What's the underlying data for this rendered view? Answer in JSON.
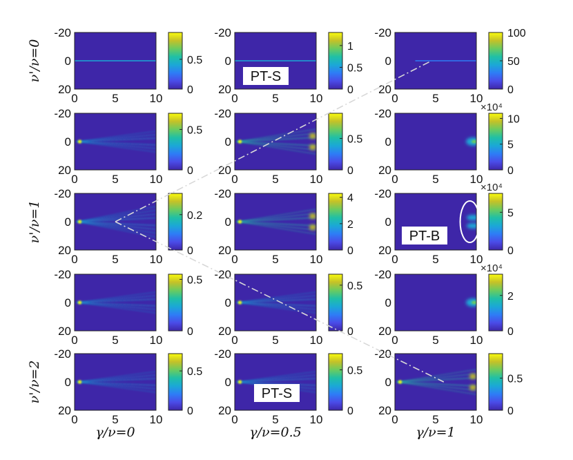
{
  "chart_data": {
    "type": "heatmap",
    "title": "",
    "xlabel": "",
    "ylabel": "",
    "x_range": [
      0,
      10
    ],
    "y_range": [
      -20,
      20
    ],
    "x_ticks": [
      "0",
      "5",
      "10"
    ],
    "y_ticks": [
      "-20",
      "0",
      "20"
    ],
    "column_labels": [
      "γ/ν=0",
      "γ/ν=0.5",
      "γ/ν=1"
    ],
    "row_labels": [
      {
        "row": 0,
        "text": "ν'/ν=0"
      },
      {
        "row": 2,
        "text": "ν'/ν=1"
      },
      {
        "row": 4,
        "text": "ν'/ν=2"
      }
    ],
    "colormap": [
      "#3e26a8",
      "#4a4ce8",
      "#2e7df6",
      "#1ba8d6",
      "#20c0a5",
      "#6bcb5f",
      "#c4c128",
      "#f9fb0e"
    ],
    "panels": [
      {
        "row": 0,
        "col": 0,
        "pattern": "line",
        "cb_max": 0.95,
        "cb_ticks": [
          0,
          0.5
        ],
        "multiplier": ""
      },
      {
        "row": 0,
        "col": 1,
        "pattern": "line",
        "cb_max": 1.3,
        "cb_ticks": [
          0,
          0.5,
          1
        ],
        "multiplier": ""
      },
      {
        "row": 0,
        "col": 2,
        "pattern": "line_right",
        "cb_max": 100,
        "cb_ticks": [
          0,
          50,
          100
        ],
        "multiplier": ""
      },
      {
        "row": 1,
        "col": 0,
        "pattern": "fan",
        "cb_max": 0.7,
        "cb_ticks": [
          0,
          0.5
        ],
        "multiplier": ""
      },
      {
        "row": 1,
        "col": 1,
        "pattern": "fan_bright",
        "cb_max": 0.9,
        "cb_ticks": [
          0,
          0.5
        ],
        "multiplier": ""
      },
      {
        "row": 1,
        "col": 2,
        "pattern": "spot",
        "cb_max": 11,
        "cb_ticks": [
          0,
          5,
          10
        ],
        "multiplier": "×10⁴"
      },
      {
        "row": 2,
        "col": 0,
        "pattern": "fan_wide",
        "cb_max": 0.32,
        "cb_ticks": [
          0,
          0.2
        ],
        "multiplier": ""
      },
      {
        "row": 2,
        "col": 1,
        "pattern": "fan_bright",
        "cb_max": 4.3,
        "cb_ticks": [
          0,
          2,
          4
        ],
        "multiplier": ""
      },
      {
        "row": 2,
        "col": 2,
        "pattern": "spot_double",
        "cb_max": 7.5,
        "cb_ticks": [
          0,
          5
        ],
        "multiplier": "×10⁴"
      },
      {
        "row": 3,
        "col": 0,
        "pattern": "fan",
        "cb_max": 0.55,
        "cb_ticks": [
          0,
          0.5
        ],
        "multiplier": ""
      },
      {
        "row": 3,
        "col": 1,
        "pattern": "fan",
        "cb_max": 0.62,
        "cb_ticks": [
          0,
          0.5
        ],
        "multiplier": ""
      },
      {
        "row": 3,
        "col": 2,
        "pattern": "spot",
        "cb_max": 3.2,
        "cb_ticks": [
          0,
          2
        ],
        "multiplier": "×10⁴"
      },
      {
        "row": 4,
        "col": 0,
        "pattern": "fan",
        "cb_max": 0.72,
        "cb_ticks": [
          0,
          0.5
        ],
        "multiplier": ""
      },
      {
        "row": 4,
        "col": 1,
        "pattern": "fan",
        "cb_max": 0.7,
        "cb_ticks": [
          0,
          0.5
        ],
        "multiplier": ""
      },
      {
        "row": 4,
        "col": 2,
        "pattern": "fan_bright",
        "cb_max": 0.88,
        "cb_ticks": [
          0,
          0.5
        ],
        "multiplier": ""
      }
    ],
    "annotations": [
      {
        "text": "PT-S",
        "row": 0,
        "col": 1
      },
      {
        "text": "PT-B",
        "row": 2,
        "col": 2
      },
      {
        "text": "PT-S",
        "row": 4,
        "col": 1
      }
    ],
    "connectors": [
      {
        "from": {
          "row": 2,
          "col": 0,
          "x": 5,
          "y": 0
        },
        "to": {
          "row": 0,
          "col": 2,
          "x": 4.5,
          "y": 0
        }
      },
      {
        "from": {
          "row": 2,
          "col": 0,
          "x": 5,
          "y": 0
        },
        "to": {
          "row": 4,
          "col": 2,
          "x": 6,
          "y": 0
        }
      }
    ],
    "highlight_ellipse": {
      "row": 2,
      "col": 2,
      "x": 9.2,
      "y": 0
    }
  }
}
